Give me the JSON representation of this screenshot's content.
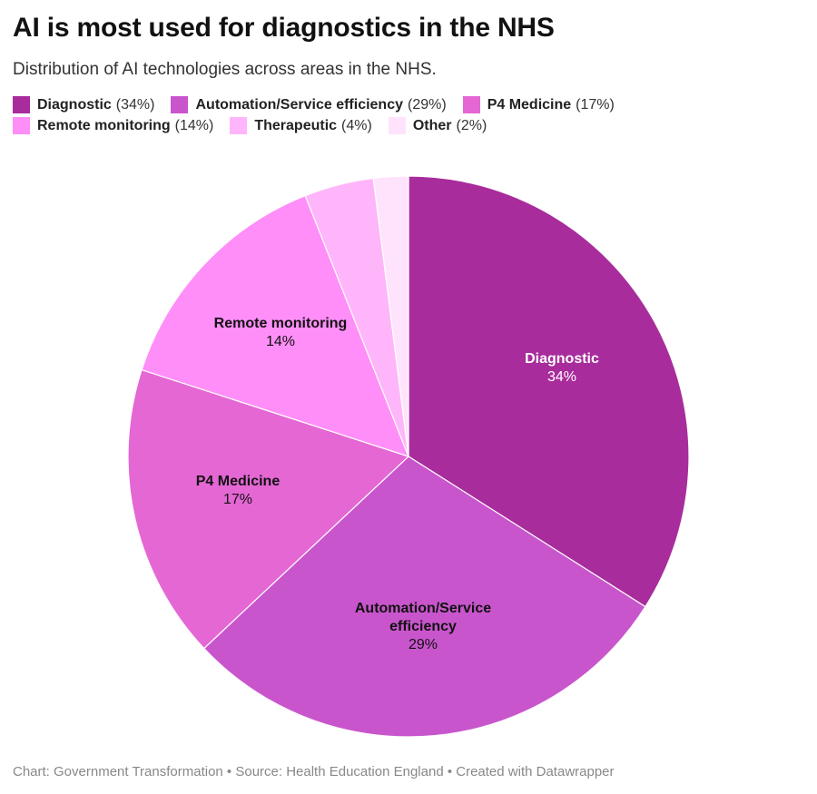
{
  "title": "AI is most used for diagnostics in the NHS",
  "subtitle": "Distribution of AI technologies across areas in the NHS.",
  "footer": "Chart: Government Transformation • Source: Health Education England • Created with Datawrapper",
  "chart_data": {
    "type": "pie",
    "slices": [
      {
        "label": "Diagnostic",
        "value": 34,
        "display": "34%",
        "legend_pct": "(34%)",
        "color": "#a82c9c",
        "text_color": "#ffffff",
        "chart_label": [
          "Diagnostic"
        ]
      },
      {
        "label": "Automation/Service efficiency",
        "value": 29,
        "display": "29%",
        "legend_pct": "(29%)",
        "color": "#c955cd",
        "text_color": "#111111",
        "chart_label": [
          "Automation/Service",
          "efficiency"
        ]
      },
      {
        "label": "P4 Medicine",
        "value": 17,
        "display": "17%",
        "legend_pct": "(17%)",
        "color": "#e467d4",
        "text_color": "#111111",
        "chart_label": [
          "P4 Medicine"
        ]
      },
      {
        "label": "Remote monitoring",
        "value": 14,
        "display": "14%",
        "legend_pct": "(14%)",
        "color": "#ff8ef8",
        "text_color": "#111111",
        "chart_label": [
          "Remote monitoring"
        ]
      },
      {
        "label": "Therapeutic",
        "value": 4,
        "display": "4%",
        "legend_pct": "(4%)",
        "color": "#ffb5fa",
        "text_color": "#111111",
        "chart_label": null
      },
      {
        "label": "Other",
        "value": 2,
        "display": "2%",
        "legend_pct": "(2%)",
        "color": "#ffe3fc",
        "text_color": "#111111",
        "chart_label": null
      }
    ],
    "legend_placement": "top-left"
  }
}
